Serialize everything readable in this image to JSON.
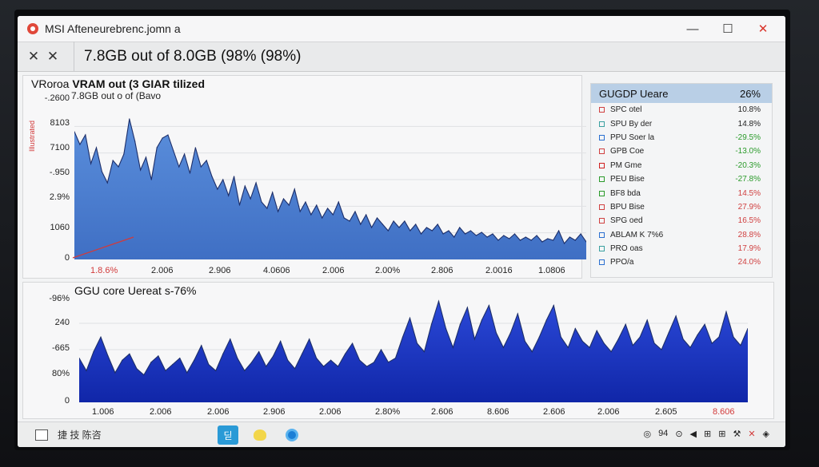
{
  "window": {
    "title": "MSI Afteneurebrenc.jomn a",
    "controls": [
      "—",
      "☐",
      "✕"
    ]
  },
  "header": {
    "icon_a": "✕",
    "icon_b": "✕",
    "headline": "7.8GB out of 8.0GB (98% (98%)"
  },
  "top_panel": {
    "title_prefix": "VRoroa",
    "title_main": "VRAM out (3 GIAR tilized",
    "subtitle": "7.8GB out o of (Bavo",
    "side_label": "Illustrated",
    "y_labels": [
      "-.2600",
      "8103",
      "7100",
      "-.950",
      "2.9%",
      "1060",
      "0"
    ],
    "x_labels": [
      "1.8.6%",
      "2.006",
      "2.906",
      "4.0606",
      "2.006",
      "2.00%",
      "2.806",
      "2.0016",
      "1.0806"
    ]
  },
  "legend": {
    "header_label": "GUGDP Ueare",
    "header_value": "26%",
    "items": [
      {
        "name": "SPC otel",
        "value": "10.8%",
        "swatch": "#d04040",
        "value_color": "#222222"
      },
      {
        "name": "SPU By der",
        "value": "14.8%",
        "swatch": "#3aa0a0",
        "value_color": "#222222"
      },
      {
        "name": "PPU Soer la",
        "value": "-29.5%",
        "swatch": "#2a6fd0",
        "value_color": "#2a9a2a"
      },
      {
        "name": "GPB Coe",
        "value": "-13.0%",
        "swatch": "#d04040",
        "value_color": "#2a9a2a"
      },
      {
        "name": "PM Gme",
        "value": "-20.3%",
        "swatch": "#d02020",
        "value_color": "#2a9a2a"
      },
      {
        "name": "PEU Bise",
        "value": "-27.8%",
        "swatch": "#2a9a2a",
        "value_color": "#2a9a2a"
      },
      {
        "name": "BF8 bda",
        "value": "14.5%",
        "swatch": "#2a9a2a",
        "value_color": "#d04040"
      },
      {
        "name": "BPU Bise",
        "value": "27.9%",
        "swatch": "#d04040",
        "value_color": "#d04040"
      },
      {
        "name": "SPG oed",
        "value": "16.5%",
        "swatch": "#d04040",
        "value_color": "#d04040"
      },
      {
        "name": "ABLAM K 7%6",
        "value": "28.8%",
        "swatch": "#2a6fd0",
        "value_color": "#d04040"
      },
      {
        "name": "PRO oas",
        "value": "17.9%",
        "swatch": "#3aa0a0",
        "value_color": "#d04040"
      },
      {
        "name": "PPO/a",
        "value": "24.0%",
        "swatch": "#2a6fd0",
        "value_color": "#d04040"
      }
    ]
  },
  "bottom_panel": {
    "title": "GGU core Uereat s-76%",
    "y_labels": [
      "-96%",
      "240",
      "-665",
      "80%",
      "0"
    ],
    "x_labels": [
      "1.006",
      "2.006",
      "2.006",
      "2.906",
      "2.006",
      "2.80%",
      "2.606",
      "8.606",
      "2.606",
      "2.006",
      "2.605",
      "8.606"
    ]
  },
  "taskbar": {
    "left_text": "捷 技 陈咨",
    "app_a_label": "딛",
    "tray": [
      "◎",
      "94",
      "⊙",
      "◀",
      "⊞",
      "⊞",
      "⚒",
      "✕",
      "◈"
    ]
  },
  "chart_data": [
    {
      "type": "area",
      "title": "VRAM out (3 GIAR tilized",
      "color": "#4a7fcf",
      "y": [
        0.8,
        0.72,
        0.78,
        0.6,
        0.7,
        0.55,
        0.48,
        0.62,
        0.58,
        0.66,
        0.88,
        0.74,
        0.56,
        0.64,
        0.5,
        0.7,
        0.76,
        0.78,
        0.68,
        0.58,
        0.66,
        0.54,
        0.7,
        0.58,
        0.62,
        0.52,
        0.44,
        0.5,
        0.4,
        0.52,
        0.34,
        0.46,
        0.38,
        0.48,
        0.36,
        0.32,
        0.42,
        0.3,
        0.38,
        0.34,
        0.44,
        0.3,
        0.36,
        0.28,
        0.34,
        0.26,
        0.32,
        0.28,
        0.36,
        0.26,
        0.24,
        0.3,
        0.22,
        0.28,
        0.2,
        0.26,
        0.22,
        0.18,
        0.24,
        0.2,
        0.24,
        0.18,
        0.22,
        0.16,
        0.2,
        0.18,
        0.22,
        0.16,
        0.18,
        0.14,
        0.2,
        0.16,
        0.18,
        0.15,
        0.17,
        0.14,
        0.16,
        0.12,
        0.15,
        0.13,
        0.16,
        0.12,
        0.14,
        0.12,
        0.15,
        0.11,
        0.13,
        0.12,
        0.18,
        0.1,
        0.14,
        0.12,
        0.16,
        0.11
      ]
    },
    {
      "type": "area",
      "title": "GGU core Uereat s-76%",
      "color": "#1f3fd0",
      "y": [
        0.42,
        0.3,
        0.48,
        0.62,
        0.44,
        0.28,
        0.4,
        0.46,
        0.32,
        0.26,
        0.38,
        0.44,
        0.3,
        0.36,
        0.42,
        0.28,
        0.4,
        0.54,
        0.36,
        0.3,
        0.46,
        0.6,
        0.42,
        0.3,
        0.38,
        0.48,
        0.34,
        0.44,
        0.58,
        0.4,
        0.32,
        0.46,
        0.6,
        0.42,
        0.34,
        0.4,
        0.34,
        0.46,
        0.56,
        0.4,
        0.34,
        0.38,
        0.5,
        0.38,
        0.42,
        0.62,
        0.8,
        0.56,
        0.48,
        0.74,
        0.96,
        0.7,
        0.52,
        0.74,
        0.9,
        0.6,
        0.78,
        0.92,
        0.66,
        0.52,
        0.66,
        0.84,
        0.58,
        0.48,
        0.62,
        0.78,
        0.92,
        0.62,
        0.52,
        0.7,
        0.58,
        0.52,
        0.68,
        0.56,
        0.48,
        0.6,
        0.74,
        0.54,
        0.62,
        0.78,
        0.56,
        0.5,
        0.66,
        0.82,
        0.6,
        0.52,
        0.64,
        0.74,
        0.56,
        0.62,
        0.86,
        0.62,
        0.54,
        0.7
      ]
    }
  ]
}
